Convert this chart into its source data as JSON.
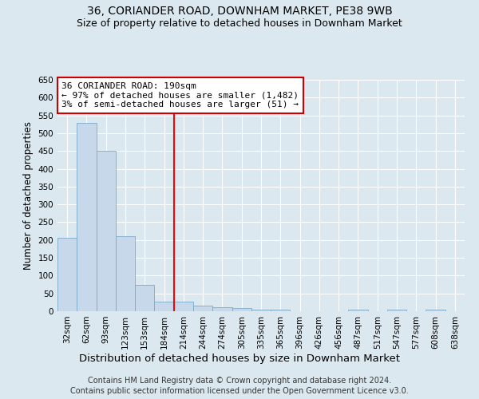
{
  "title": "36, CORIANDER ROAD, DOWNHAM MARKET, PE38 9WB",
  "subtitle": "Size of property relative to detached houses in Downham Market",
  "xlabel": "Distribution of detached houses by size in Downham Market",
  "ylabel": "Number of detached properties",
  "footer_line1": "Contains HM Land Registry data © Crown copyright and database right 2024.",
  "footer_line2": "Contains public sector information licensed under the Open Government Licence v3.0.",
  "categories": [
    "32sqm",
    "62sqm",
    "93sqm",
    "123sqm",
    "153sqm",
    "184sqm",
    "214sqm",
    "244sqm",
    "274sqm",
    "305sqm",
    "335sqm",
    "365sqm",
    "396sqm",
    "426sqm",
    "456sqm",
    "487sqm",
    "517sqm",
    "547sqm",
    "577sqm",
    "608sqm",
    "638sqm"
  ],
  "bar_heights": [
    207,
    530,
    450,
    210,
    75,
    28,
    27,
    15,
    12,
    8,
    4,
    5,
    0,
    0,
    0,
    5,
    0,
    5,
    0,
    5,
    0
  ],
  "bar_color": "#c8d8eb",
  "bar_edge_color": "#7aaac8",
  "red_line_index": 5,
  "annotation_text_line1": "36 CORIANDER ROAD: 190sqm",
  "annotation_text_line2": "← 97% of detached houses are smaller (1,482)",
  "annotation_text_line3": "3% of semi-detached houses are larger (51) →",
  "annotation_box_color": "#ffffff",
  "annotation_box_edge": "#cc0000",
  "ylim": [
    0,
    650
  ],
  "yticks": [
    0,
    50,
    100,
    150,
    200,
    250,
    300,
    350,
    400,
    450,
    500,
    550,
    600,
    650
  ],
  "background_color": "#dce8f0",
  "plot_bg_color": "#dce8f0",
  "grid_color": "#ffffff",
  "title_fontsize": 10,
  "subtitle_fontsize": 9,
  "xlabel_fontsize": 9.5,
  "ylabel_fontsize": 8.5,
  "tick_fontsize": 7.5,
  "annotation_fontsize": 8,
  "footer_fontsize": 7
}
